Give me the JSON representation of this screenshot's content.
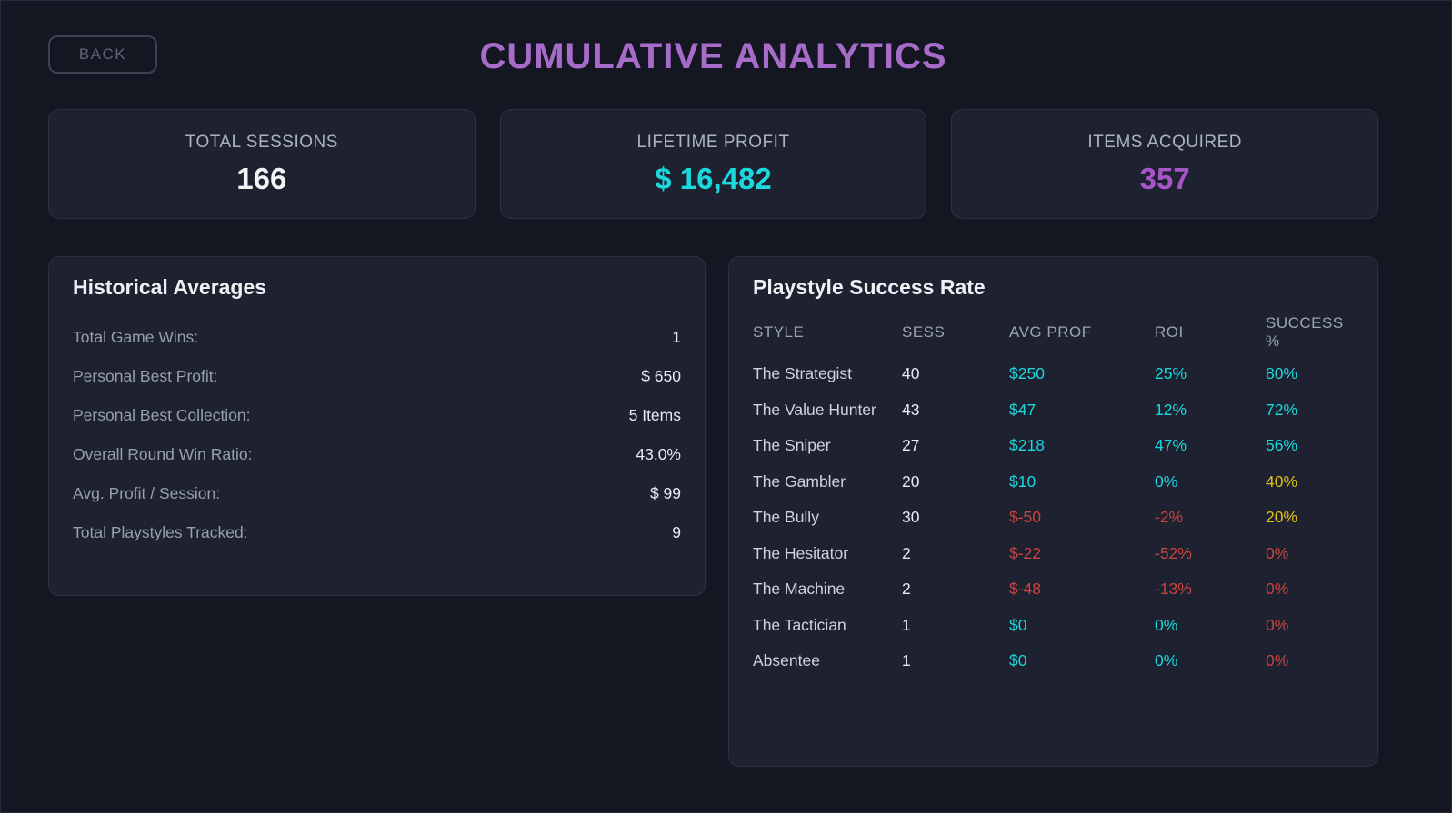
{
  "theme": {
    "background": "#141722",
    "card_background": "#1d2130",
    "card_border": "#2b3144",
    "divider": "#3a4154",
    "accent_cyan": "#1bd8de",
    "accent_purple": "#a855c9",
    "title_purple": "#a76bc9",
    "accent_red": "#c9443f",
    "accent_yellow": "#e2c113",
    "text_primary": "#e9ecef",
    "text_muted": "#96a0ad"
  },
  "header": {
    "back_label": "BACK",
    "title": "CUMULATIVE ANALYTICS"
  },
  "stats": {
    "cards": [
      {
        "label": "TOTAL SESSIONS",
        "value": "166",
        "color": "white"
      },
      {
        "label": "LIFETIME PROFIT",
        "value": "$ 16,482",
        "color": "cyan"
      },
      {
        "label": "ITEMS ACQUIRED",
        "value": "357",
        "color": "purple"
      }
    ]
  },
  "historical": {
    "title": "Historical Averages",
    "rows": [
      {
        "label": "Total Game Wins:",
        "value": "1"
      },
      {
        "label": "Personal Best Profit:",
        "value": "$ 650"
      },
      {
        "label": "Personal Best Collection:",
        "value": "5 Items"
      },
      {
        "label": "Overall Round Win Ratio:",
        "value": "43.0%"
      },
      {
        "label": "Avg. Profit / Session:",
        "value": "$ 99"
      },
      {
        "label": "Total Playstyles Tracked:",
        "value": "9"
      }
    ]
  },
  "playstyle": {
    "title": "Playstyle Success Rate",
    "headers": [
      "STYLE",
      "SESS",
      "AVG PROF",
      "ROI",
      "SUCCESS %"
    ],
    "rows": [
      {
        "style": "The Strategist",
        "sess": "40",
        "avg_prof": {
          "text": "$250",
          "color": "cyan"
        },
        "roi": {
          "text": "25%",
          "color": "cyan"
        },
        "success": {
          "text": "80%",
          "color": "cyan"
        }
      },
      {
        "style": "The Value Hunter",
        "sess": "43",
        "avg_prof": {
          "text": "$47",
          "color": "cyan"
        },
        "roi": {
          "text": "12%",
          "color": "cyan"
        },
        "success": {
          "text": "72%",
          "color": "cyan"
        }
      },
      {
        "style": "The Sniper",
        "sess": "27",
        "avg_prof": {
          "text": "$218",
          "color": "cyan"
        },
        "roi": {
          "text": "47%",
          "color": "cyan"
        },
        "success": {
          "text": "56%",
          "color": "cyan"
        }
      },
      {
        "style": "The Gambler",
        "sess": "20",
        "avg_prof": {
          "text": "$10",
          "color": "cyan"
        },
        "roi": {
          "text": "0%",
          "color": "cyan"
        },
        "success": {
          "text": "40%",
          "color": "yellow"
        }
      },
      {
        "style": "The Bully",
        "sess": "30",
        "avg_prof": {
          "text": "$-50",
          "color": "red"
        },
        "roi": {
          "text": "-2%",
          "color": "red"
        },
        "success": {
          "text": "20%",
          "color": "yellow"
        }
      },
      {
        "style": "The Hesitator",
        "sess": "2",
        "avg_prof": {
          "text": "$-22",
          "color": "red"
        },
        "roi": {
          "text": "-52%",
          "color": "red"
        },
        "success": {
          "text": "0%",
          "color": "red"
        }
      },
      {
        "style": "The Machine",
        "sess": "2",
        "avg_prof": {
          "text": "$-48",
          "color": "red"
        },
        "roi": {
          "text": "-13%",
          "color": "red"
        },
        "success": {
          "text": "0%",
          "color": "red"
        }
      },
      {
        "style": "The Tactician",
        "sess": "1",
        "avg_prof": {
          "text": "$0",
          "color": "cyan"
        },
        "roi": {
          "text": "0%",
          "color": "cyan"
        },
        "success": {
          "text": "0%",
          "color": "red"
        }
      },
      {
        "style": "Absentee",
        "sess": "1",
        "avg_prof": {
          "text": "$0",
          "color": "cyan"
        },
        "roi": {
          "text": "0%",
          "color": "cyan"
        },
        "success": {
          "text": "0%",
          "color": "red"
        }
      }
    ]
  }
}
